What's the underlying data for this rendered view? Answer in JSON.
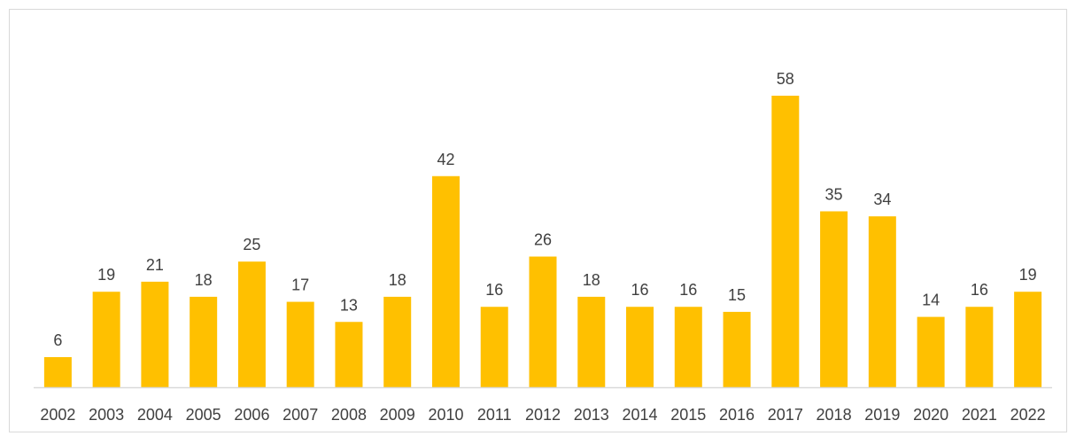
{
  "chart_data": {
    "type": "bar",
    "title": "",
    "xlabel": "",
    "ylabel": "",
    "categories": [
      "2002",
      "2003",
      "2004",
      "2005",
      "2006",
      "2007",
      "2008",
      "2009",
      "2010",
      "2011",
      "2012",
      "2013",
      "2014",
      "2015",
      "2016",
      "2017",
      "2018",
      "2019",
      "2020",
      "2021",
      "2022"
    ],
    "values": [
      6,
      19,
      21,
      18,
      25,
      17,
      13,
      18,
      42,
      16,
      26,
      18,
      16,
      16,
      15,
      58,
      35,
      34,
      14,
      16,
      19
    ],
    "ylim": [
      0,
      58
    ],
    "grid": false,
    "legend": "none",
    "bar_color": "#FFC000",
    "axis_color": "#d9d9d9",
    "label_color": "#404040"
  }
}
